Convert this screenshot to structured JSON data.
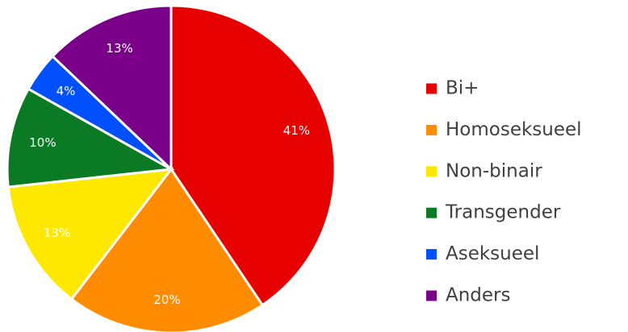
{
  "chart_data": {
    "type": "pie",
    "categories": [
      "Bi+",
      "Homoseksueel",
      "Non-binair",
      "Transgender",
      "Aseksueel",
      "Anders"
    ],
    "values": [
      41,
      20,
      13,
      10,
      4,
      13
    ],
    "value_labels": [
      "41%",
      "20%",
      "13%",
      "10%",
      "4%",
      "13%"
    ],
    "colors": [
      "#e60000",
      "#ff8c00",
      "#ffe800",
      "#0b7a24",
      "#0050ff",
      "#7a0089"
    ],
    "legend": "right"
  }
}
